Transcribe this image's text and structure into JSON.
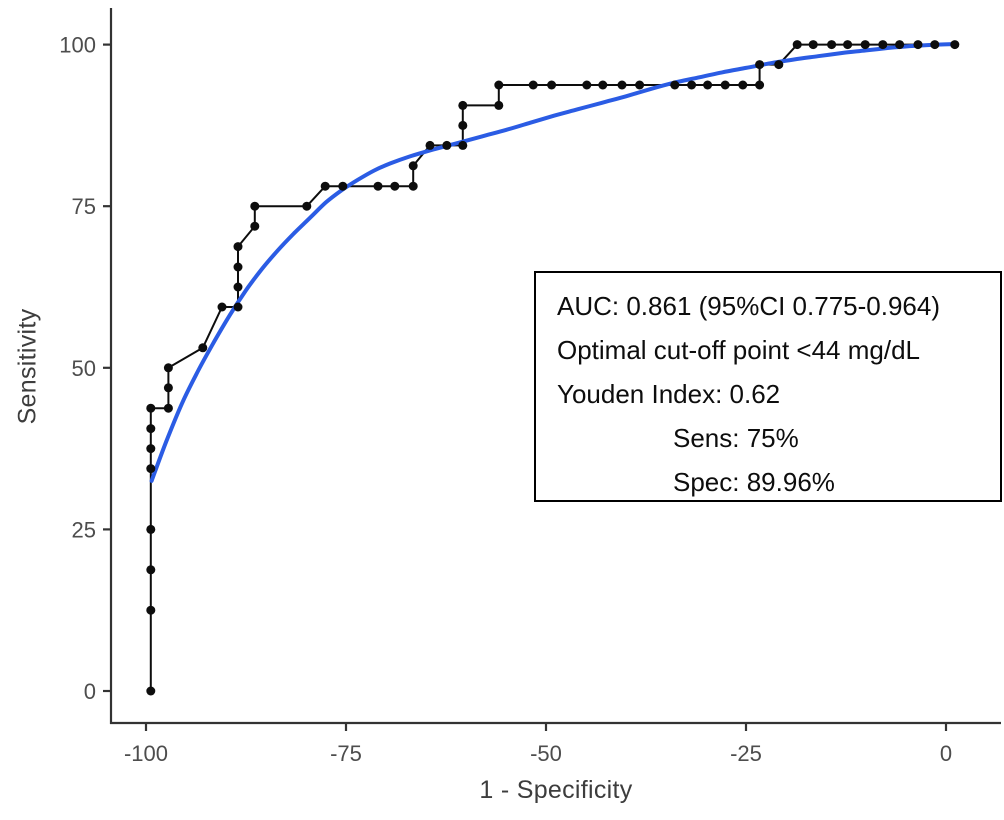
{
  "chart_data": {
    "type": "line",
    "subtype": "roc-curve",
    "title": "",
    "xlabel": "1 - Specificity",
    "ylabel": "Sensitivity",
    "xlim": [
      -107,
      7
    ],
    "ylim": [
      -4,
      106
    ],
    "x_ticks": [
      -100,
      -75,
      -50,
      -25,
      0
    ],
    "x_tick_labels": [
      "-100",
      "-75",
      "-50",
      "-25",
      "0"
    ],
    "y_ticks": [
      0,
      25,
      50,
      75,
      100
    ],
    "y_tick_labels": [
      "0",
      "25",
      "50",
      "75",
      "100"
    ],
    "grid": false,
    "legend": "none",
    "colors": {
      "axis": "#333333",
      "tick_labels": "#4d4d4d",
      "empirical": "#0d0d0d",
      "smooth": "#2b5ce4",
      "annotation_border": "#000000",
      "annotation_background": "#ffffff"
    },
    "series": [
      {
        "name": "Empirical ROC (step line with point markers)",
        "type": "step",
        "color": "#0d0d0d",
        "line_width": 2,
        "marker": "circle",
        "marker_radius": 4.5,
        "points": [
          [
            -99.4,
            0
          ],
          [
            -99.4,
            12.5
          ],
          [
            -99.4,
            18.75
          ],
          [
            -99.4,
            25
          ],
          [
            -99.4,
            34.4
          ],
          [
            -99.4,
            37.5
          ],
          [
            -99.4,
            40.6
          ],
          [
            -99.4,
            43.75
          ],
          [
            -97.2,
            43.75
          ],
          [
            -97.2,
            46.9
          ],
          [
            -97.2,
            50
          ],
          [
            -92.9,
            53.1
          ],
          [
            -90.5,
            59.4
          ],
          [
            -88.5,
            59.4
          ],
          [
            -88.5,
            62.5
          ],
          [
            -88.5,
            65.6
          ],
          [
            -88.5,
            68.75
          ],
          [
            -86.4,
            71.9
          ],
          [
            -86.4,
            75
          ],
          [
            -79.9,
            75
          ],
          [
            -77.6,
            78.1
          ],
          [
            -75.4,
            78.1
          ],
          [
            -71.0,
            78.1
          ],
          [
            -68.9,
            78.1
          ],
          [
            -66.6,
            78.1
          ],
          [
            -66.6,
            81.25
          ],
          [
            -64.5,
            84.4
          ],
          [
            -62.4,
            84.4
          ],
          [
            -60.4,
            84.4
          ],
          [
            -60.4,
            87.5
          ],
          [
            -60.4,
            90.6
          ],
          [
            -55.9,
            90.6
          ],
          [
            -55.9,
            93.75
          ],
          [
            -51.6,
            93.75
          ],
          [
            -49.3,
            93.75
          ],
          [
            -44.9,
            93.75
          ],
          [
            -42.9,
            93.75
          ],
          [
            -40.5,
            93.75
          ],
          [
            -38.3,
            93.75
          ],
          [
            -33.9,
            93.75
          ],
          [
            -31.8,
            93.75
          ],
          [
            -29.8,
            93.75
          ],
          [
            -27.6,
            93.75
          ],
          [
            -25.4,
            93.75
          ],
          [
            -23.3,
            93.75
          ],
          [
            -23.3,
            96.9
          ],
          [
            -20.9,
            96.9
          ],
          [
            -18.6,
            100
          ],
          [
            -16.6,
            100
          ],
          [
            -14.3,
            100
          ],
          [
            -12.3,
            100
          ],
          [
            -10.1,
            100
          ],
          [
            -7.9,
            100
          ],
          [
            -5.8,
            100
          ],
          [
            -3.5,
            100
          ],
          [
            -1.4,
            100
          ],
          [
            1.1,
            100
          ]
        ]
      },
      {
        "name": "Smoothed (fitted) ROC curve",
        "type": "smooth-line",
        "color": "#2b5ce4",
        "line_width": 4,
        "marker": "none",
        "points": [
          [
            -99.3,
            32.5
          ],
          [
            -97.5,
            38.5
          ],
          [
            -95.5,
            44.5
          ],
          [
            -93.5,
            49.5
          ],
          [
            -91.5,
            54
          ],
          [
            -89.5,
            58.2
          ],
          [
            -87.5,
            62
          ],
          [
            -85.5,
            65.3
          ],
          [
            -83.5,
            68.2
          ],
          [
            -81.5,
            70.8
          ],
          [
            -79.5,
            73.2
          ],
          [
            -77.5,
            75.6
          ],
          [
            -75.5,
            77.5
          ],
          [
            -73.5,
            79.1
          ],
          [
            -71.5,
            80.5
          ],
          [
            -69.5,
            81.6
          ],
          [
            -67,
            82.7
          ],
          [
            -64,
            83.8
          ],
          [
            -61,
            84.8
          ],
          [
            -58,
            85.8
          ],
          [
            -55,
            86.8
          ],
          [
            -52,
            87.9
          ],
          [
            -49,
            89
          ],
          [
            -46,
            90
          ],
          [
            -43,
            91
          ],
          [
            -40,
            92
          ],
          [
            -37,
            93.1
          ],
          [
            -34,
            94.1
          ],
          [
            -31,
            94.9
          ],
          [
            -28,
            95.7
          ],
          [
            -25,
            96.4
          ],
          [
            -22,
            97.1
          ],
          [
            -19,
            97.7
          ],
          [
            -16,
            98.2
          ],
          [
            -13,
            98.7
          ],
          [
            -10,
            99.1
          ],
          [
            -7,
            99.5
          ],
          [
            -4,
            99.8
          ],
          [
            -1,
            100
          ],
          [
            1.3,
            100.1
          ]
        ]
      }
    ],
    "annotation": {
      "lines": [
        "AUC: 0.861 (95%CI 0.775-0.964)",
        "Optimal cut-off point <44 mg/dL",
        "Youden Index: 0.62",
        "Sens: 75%",
        "Spec: 89.96%"
      ],
      "auc": 0.861,
      "ci_low": 0.775,
      "ci_high": 0.964,
      "optimal_cutoff": "<44 mg/dL",
      "youden_index": 0.62,
      "sensitivity_pct": 75,
      "specificity_pct": 89.96
    }
  }
}
